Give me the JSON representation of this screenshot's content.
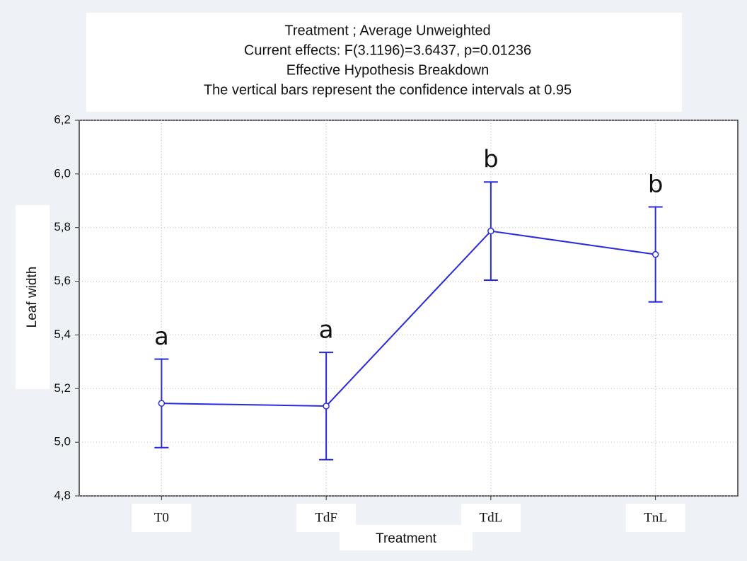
{
  "chart_data": {
    "type": "line",
    "title": "Treatment ; Average Unweighted",
    "subtitle": [
      "Current effects: F(3.1196)=3.6437, p=0.01236",
      "Effective Hypothesis Breakdown",
      "The vertical bars represent the confidence intervals at 0.95"
    ],
    "x_label": "Treatment",
    "y_label": "Leaf width",
    "categories": [
      "T0",
      "TdF",
      "TdL",
      "TnL"
    ],
    "series": [
      {
        "color": "#2a2ae0",
        "values": [
          5.145,
          5.135,
          5.787,
          5.7
        ],
        "errors": [
          0.165,
          0.2,
          0.183,
          0.177
        ]
      }
    ],
    "annotations": [
      "a",
      "a",
      "b",
      "b"
    ],
    "ylim": [
      4.8,
      6.2
    ],
    "yticks": [
      {
        "value": 4.8,
        "label": "4,8"
      },
      {
        "value": 5.0,
        "label": "5,0"
      },
      {
        "value": 5.2,
        "label": "5,2"
      },
      {
        "value": 5.4,
        "label": "5,4"
      },
      {
        "value": 5.6,
        "label": "5,6"
      },
      {
        "value": 5.8,
        "label": "5,8"
      },
      {
        "value": 6.0,
        "label": "6,0"
      },
      {
        "value": 6.2,
        "label": "6,2"
      }
    ],
    "grid": true
  }
}
